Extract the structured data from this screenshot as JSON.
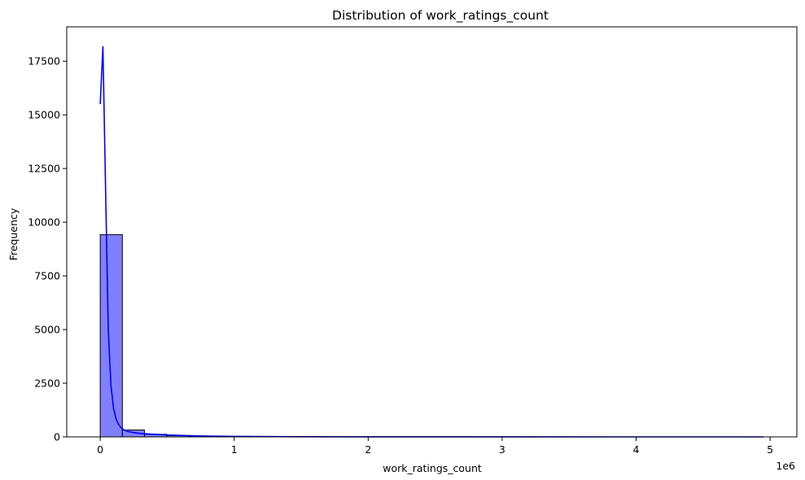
{
  "chart_data": {
    "type": "bar",
    "title": "Distribution of work_ratings_count",
    "xlabel": "work_ratings_count",
    "ylabel": "Frequency",
    "x_offset_label": "1e6",
    "xlim": [
      -0.25,
      5.2
    ],
    "ylim": [
      0,
      19100
    ],
    "x_scale_factor": 1000000,
    "x_ticks": [
      0,
      1,
      2,
      3,
      4,
      5
    ],
    "x_tick_labels": [
      "0",
      "1",
      "2",
      "3",
      "4",
      "5"
    ],
    "y_ticks": [
      0,
      2500,
      5000,
      7500,
      10000,
      12500,
      15000,
      17500
    ],
    "y_tick_labels": [
      "0",
      "2500",
      "5000",
      "7500",
      "10000",
      "12500",
      "15000",
      "17500"
    ],
    "grid": false,
    "bins": {
      "start": 0,
      "width": 0.165,
      "counts": [
        9420,
        320,
        120,
        60,
        30,
        15,
        10,
        6,
        5,
        3,
        2,
        2,
        1,
        1,
        1,
        1,
        1,
        0,
        0,
        0,
        0,
        0,
        0,
        0,
        0,
        0,
        0,
        0,
        0,
        1
      ]
    },
    "kde": {
      "x": [
        0.0,
        0.02,
        0.04,
        0.06,
        0.08,
        0.1,
        0.12,
        0.14,
        0.16,
        0.18,
        0.2,
        0.25,
        0.3,
        0.4,
        0.5,
        0.6,
        0.7,
        0.8,
        1.0,
        1.5,
        2.0,
        3.0,
        4.0,
        4.95
      ],
      "y": [
        15500,
        18200,
        11500,
        5000,
        2400,
        1300,
        800,
        550,
        400,
        320,
        260,
        200,
        160,
        120,
        90,
        70,
        50,
        35,
        20,
        8,
        3,
        1,
        0.5,
        0.2
      ]
    },
    "colors": {
      "bar_fill": "#8080ff",
      "bar_edge": "#000000",
      "kde_line": "#0000ff"
    }
  }
}
